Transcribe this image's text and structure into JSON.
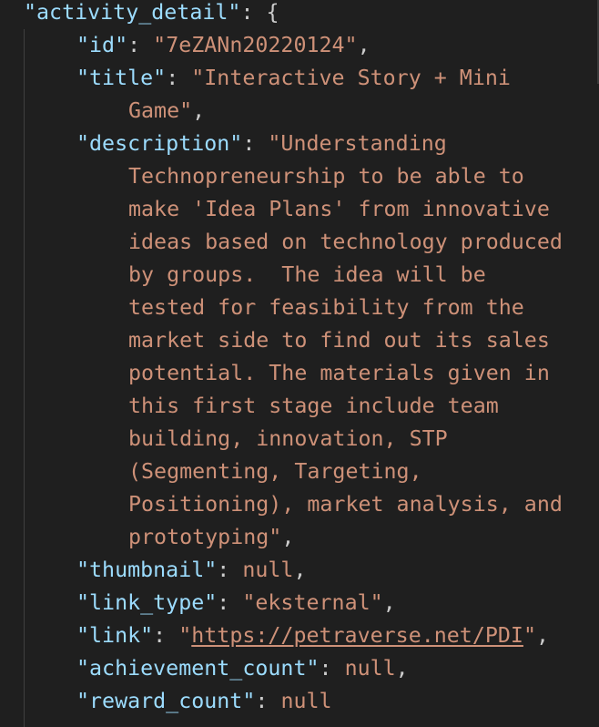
{
  "root_key": "\"activity_detail\"",
  "open_brace": "{",
  "fields": {
    "id": {
      "key": "\"id\"",
      "value": "\"7eZANn20220124\""
    },
    "title": {
      "key": "\"title\"",
      "value_line1": "\"Interactive Story + Mini",
      "value_line2": "Game\""
    },
    "description": {
      "key": "\"description\"",
      "lines": [
        "\"Understanding",
        "Technopreneurship to be able to",
        "make 'Idea Plans' from innovative",
        "ideas based on technology produced",
        "by groups.  The idea will be",
        "tested for feasibility from the",
        "market side to find out its sales",
        "potential. The materials given in",
        "this first stage include team",
        "building, innovation, STP",
        "(Segmenting, Targeting,",
        "Positioning), market analysis, and",
        "prototyping\""
      ]
    },
    "thumbnail": {
      "key": "\"thumbnail\"",
      "value": "null"
    },
    "link_type": {
      "key": "\"link_type\"",
      "value": "\"eksternal\""
    },
    "link": {
      "key": "\"link\"",
      "quote_open": "\"",
      "url": "https://petraverse.net/PDI",
      "quote_close": "\""
    },
    "achievement_count": {
      "key": "\"achievement_count\"",
      "value": "null"
    },
    "reward_count": {
      "key": "\"reward_count\"",
      "value": "null"
    }
  },
  "punctuation": {
    "colon": ": ",
    "comma": ","
  },
  "colors": {
    "background": "#1f1f1f",
    "key": "#9cdcfe",
    "string": "#ce9178",
    "punctuation": "#cccccc"
  }
}
